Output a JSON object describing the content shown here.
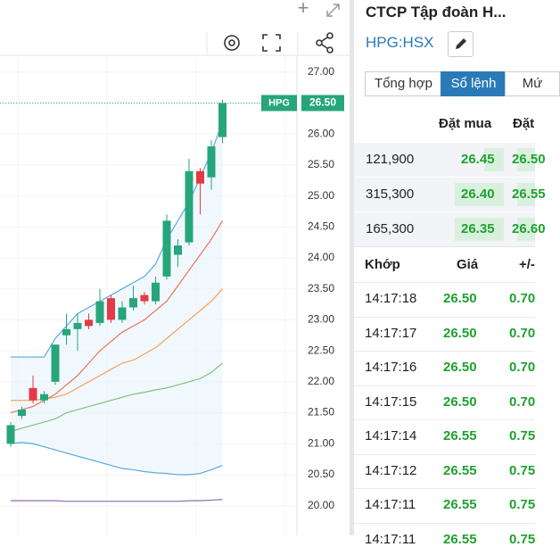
{
  "chart_data": {
    "type": "candlestick",
    "categories": [
      null,
      null,
      null,
      null,
      null,
      null,
      null,
      null,
      null,
      null,
      null,
      null,
      null,
      null,
      null,
      null,
      null,
      null,
      null,
      null
    ],
    "open": [
      21.0,
      21.45,
      21.9,
      21.7,
      22.0,
      22.75,
      22.85,
      23.0,
      22.95,
      23.35,
      23.0,
      23.2,
      23.4,
      23.3,
      23.7,
      24.05,
      24.25,
      25.4,
      25.3,
      25.95
    ],
    "high": [
      21.35,
      21.6,
      22.1,
      21.85,
      22.6,
      23.1,
      23.1,
      23.1,
      23.5,
      23.4,
      23.3,
      23.55,
      23.45,
      23.7,
      24.7,
      24.3,
      25.6,
      25.45,
      25.9,
      26.55
    ],
    "low": [
      20.95,
      21.4,
      21.65,
      21.65,
      21.95,
      22.6,
      22.5,
      22.85,
      22.9,
      22.95,
      22.95,
      23.15,
      23.25,
      23.25,
      23.65,
      23.85,
      24.2,
      24.7,
      25.1,
      25.85
    ],
    "close": [
      21.3,
      21.55,
      21.7,
      21.8,
      22.6,
      22.85,
      22.95,
      22.9,
      23.3,
      23.0,
      23.2,
      23.35,
      23.3,
      23.6,
      24.6,
      24.2,
      25.4,
      25.2,
      25.8,
      26.5
    ],
    "up_color": "#26a67a",
    "down_color": "#e53945",
    "series": [
      {
        "color": "#5aa9e0",
        "values": [
          22.4,
          22.4,
          22.4,
          22.4,
          22.7,
          22.9,
          23.1,
          23.2,
          23.3,
          23.4,
          23.5,
          23.6,
          23.7,
          23.9,
          24.3,
          24.6,
          24.9,
          25.3,
          25.7,
          26.2
        ]
      },
      {
        "color": "#5aa9e0",
        "values": [
          21.0,
          21.02,
          21.0,
          20.95,
          20.9,
          20.85,
          20.8,
          20.75,
          20.7,
          20.65,
          20.6,
          20.58,
          20.55,
          20.53,
          20.52,
          20.5,
          20.5,
          20.52,
          20.58,
          20.65
        ]
      },
      {
        "color": "#8c6bb1",
        "values": [
          20.08,
          20.08,
          20.08,
          20.08,
          20.08,
          20.07,
          20.07,
          20.07,
          20.07,
          20.07,
          20.07,
          20.07,
          20.07,
          20.07,
          20.07,
          20.07,
          20.08,
          20.08,
          20.09,
          20.1
        ]
      },
      {
        "color": "#7cc47c",
        "values": [
          21.2,
          21.25,
          21.3,
          21.35,
          21.4,
          21.5,
          21.55,
          21.6,
          21.65,
          21.7,
          21.75,
          21.8,
          21.83,
          21.87,
          21.9,
          21.95,
          22.0,
          22.05,
          22.15,
          22.3
        ]
      },
      {
        "color": "#f5a05a",
        "values": [
          21.7,
          21.7,
          21.7,
          21.72,
          21.75,
          21.8,
          21.9,
          22.0,
          22.1,
          22.2,
          22.3,
          22.35,
          22.45,
          22.55,
          22.7,
          22.85,
          23.0,
          23.15,
          23.3,
          23.5
        ]
      },
      {
        "color": "#e8735a",
        "values": [
          21.5,
          21.55,
          21.6,
          21.7,
          21.8,
          21.95,
          22.1,
          22.3,
          22.5,
          22.65,
          22.8,
          22.9,
          23.0,
          23.15,
          23.3,
          23.55,
          23.8,
          24.05,
          24.3,
          24.6
        ]
      }
    ],
    "ylim": [
      19.52,
      27.27
    ],
    "yticks": [
      {
        "value": 27,
        "label": "27.00"
      },
      {
        "value": 26.5,
        "label": "26.50"
      },
      {
        "value": 26,
        "label": "26.00"
      },
      {
        "value": 25.5,
        "label": "25.50"
      },
      {
        "value": 25,
        "label": "25.00"
      },
      {
        "value": 24.5,
        "label": "24.50"
      },
      {
        "value": 24,
        "label": "24.00"
      },
      {
        "value": 23.5,
        "label": "23.50"
      },
      {
        "value": 23,
        "label": "23.00"
      },
      {
        "value": 22.5,
        "label": "22.50"
      },
      {
        "value": 22,
        "label": "22.00"
      },
      {
        "value": 21.5,
        "label": "21.50"
      },
      {
        "value": 21,
        "label": "21.00"
      },
      {
        "value": 20.5,
        "label": "20.50"
      },
      {
        "value": 20,
        "label": "20.00"
      }
    ],
    "grid": true,
    "price_tag": "HPG",
    "last_price": {
      "value": 26.5,
      "label": "26.50"
    }
  },
  "stock": {
    "name": "CTCP Tập đoàn H...",
    "code": "HPG:HSX"
  },
  "tabs": [
    "Tổng hợp",
    "Sổ lệnh",
    "Mứ"
  ],
  "order_book": {
    "headers": [
      "Đặt mua",
      "Đặt"
    ],
    "rows": [
      [
        "121,900",
        "26.45",
        "26.50"
      ],
      [
        "315,300",
        "26.40",
        "26.55"
      ],
      [
        "165,300",
        "26.35",
        "26.60"
      ]
    ]
  },
  "trades": {
    "headers": [
      "Khớp",
      "Giá",
      "+/-"
    ],
    "rows": [
      [
        "14:17:18",
        "26.50",
        "0.70"
      ],
      [
        "14:17:17",
        "26.50",
        "0.70"
      ],
      [
        "14:17:16",
        "26.50",
        "0.70"
      ],
      [
        "14:17:15",
        "26.50",
        "0.70"
      ],
      [
        "14:17:14",
        "26.55",
        "0.75"
      ],
      [
        "14:17:12",
        "26.55",
        "0.75"
      ],
      [
        "14:17:11",
        "26.55",
        "0.75"
      ],
      [
        "14:17:11",
        "26.55",
        "0.75"
      ]
    ]
  }
}
